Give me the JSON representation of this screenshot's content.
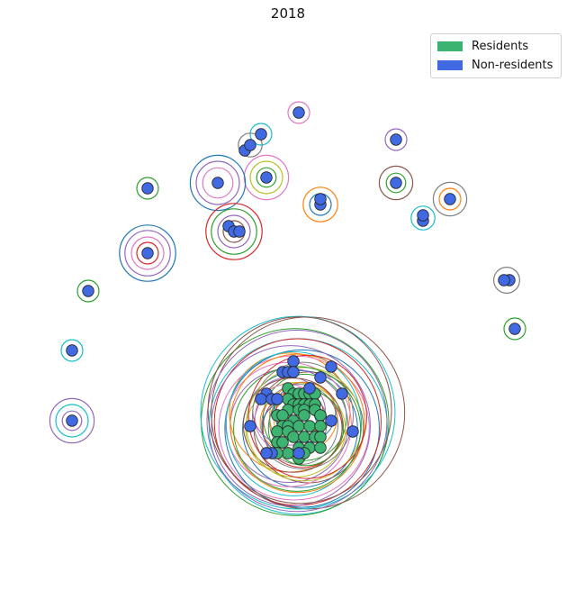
{
  "chart_data": {
    "type": "scatter",
    "title": "2018",
    "xlabel": "",
    "ylabel": "",
    "axes_visible": false,
    "grid": false,
    "legend_placement": "top-right",
    "xlim": [
      0,
      100
    ],
    "ylim": [
      0,
      100
    ],
    "series": [
      {
        "name": "Residents",
        "color": "#3cb371",
        "points": [
          [
            50,
            34
          ],
          [
            51,
            33
          ],
          [
            52,
            33
          ],
          [
            53,
            33
          ],
          [
            54,
            33
          ],
          [
            55,
            33
          ],
          [
            50,
            32
          ],
          [
            51,
            31
          ],
          [
            52,
            31
          ],
          [
            53,
            31
          ],
          [
            54,
            31
          ],
          [
            55,
            31
          ],
          [
            50,
            30
          ],
          [
            52,
            30
          ],
          [
            53,
            30
          ],
          [
            55,
            30
          ],
          [
            48,
            29
          ],
          [
            49,
            29
          ],
          [
            51,
            28
          ],
          [
            53,
            29
          ],
          [
            56,
            29
          ],
          [
            49,
            27
          ],
          [
            50,
            27
          ],
          [
            52,
            27
          ],
          [
            54,
            27
          ],
          [
            56,
            27
          ],
          [
            48,
            26
          ],
          [
            50,
            26
          ],
          [
            51,
            25
          ],
          [
            53,
            25
          ],
          [
            55,
            25
          ],
          [
            56,
            25
          ],
          [
            48,
            24
          ],
          [
            49,
            24
          ],
          [
            52,
            23
          ],
          [
            54,
            23
          ],
          [
            56,
            23
          ],
          [
            50,
            22
          ],
          [
            52,
            21
          ],
          [
            48,
            22
          ],
          [
            53,
            22
          ]
        ],
        "sizes": [
          1
        ]
      },
      {
        "name": "Non-residents",
        "color": "#4169e1",
        "points": [
          [
            52,
            85
          ],
          [
            45,
            81
          ],
          [
            42,
            78
          ],
          [
            43,
            79
          ],
          [
            46,
            73
          ],
          [
            37,
            72
          ],
          [
            24,
            71
          ],
          [
            56,
            68
          ],
          [
            56,
            69
          ],
          [
            70,
            80
          ],
          [
            70,
            72
          ],
          [
            80,
            69
          ],
          [
            75,
            65
          ],
          [
            75,
            66
          ],
          [
            39,
            64
          ],
          [
            40,
            63
          ],
          [
            41,
            63
          ],
          [
            24,
            59
          ],
          [
            13,
            52
          ],
          [
            91,
            54
          ],
          [
            90,
            54
          ],
          [
            92,
            45
          ],
          [
            10,
            41
          ],
          [
            10,
            28
          ],
          [
            51,
            39
          ],
          [
            58,
            38
          ],
          [
            49,
            37
          ],
          [
            50,
            37
          ],
          [
            51,
            37
          ],
          [
            56,
            36
          ],
          [
            60,
            33
          ],
          [
            46,
            33
          ],
          [
            45,
            32
          ],
          [
            47,
            32
          ],
          [
            48,
            32
          ],
          [
            54,
            34
          ],
          [
            43,
            27
          ],
          [
            58,
            28
          ],
          [
            62,
            26
          ],
          [
            47,
            22
          ],
          [
            46,
            22
          ],
          [
            52,
            22
          ]
        ],
        "sizes": [
          1
        ]
      }
    ],
    "ring_groups": [
      {
        "x": 52,
        "y": 85,
        "rings": [
          {
            "r": 2.0,
            "color": "#e377c2"
          }
        ]
      },
      {
        "x": 45,
        "y": 81,
        "rings": [
          {
            "r": 2.0,
            "color": "#17becf"
          }
        ]
      },
      {
        "x": 43,
        "y": 79,
        "rings": [
          {
            "r": 2.2,
            "color": "#7f7f7f"
          }
        ]
      },
      {
        "x": 46,
        "y": 73,
        "rings": [
          {
            "r": 1.8,
            "color": "#2ca02c"
          },
          {
            "r": 3.0,
            "color": "#bcbd22"
          },
          {
            "r": 4.1,
            "color": "#e377c2"
          }
        ]
      },
      {
        "x": 37,
        "y": 72,
        "rings": [
          {
            "r": 2.8,
            "color": "#e377c2"
          },
          {
            "r": 4.0,
            "color": "#9467bd"
          },
          {
            "r": 5.1,
            "color": "#1f77b4"
          }
        ]
      },
      {
        "x": 24,
        "y": 71,
        "rings": [
          {
            "r": 2.0,
            "color": "#2ca02c"
          }
        ]
      },
      {
        "x": 56,
        "y": 68,
        "rings": [
          {
            "r": 2.0,
            "color": "#1f77b4"
          },
          {
            "r": 3.2,
            "color": "#ff7f0e"
          }
        ]
      },
      {
        "x": 70,
        "y": 80,
        "rings": [
          {
            "r": 2.0,
            "color": "#9467bd"
          }
        ]
      },
      {
        "x": 70,
        "y": 72,
        "rings": [
          {
            "r": 1.8,
            "color": "#2ca02c"
          },
          {
            "r": 3.1,
            "color": "#8c564b"
          }
        ]
      },
      {
        "x": 80,
        "y": 69,
        "rings": [
          {
            "r": 2.0,
            "color": "#ff7f0e"
          },
          {
            "r": 3.1,
            "color": "#7f7f7f"
          }
        ]
      },
      {
        "x": 75,
        "y": 65.5,
        "rings": [
          {
            "r": 2.2,
            "color": "#17becf"
          }
        ]
      },
      {
        "x": 40,
        "y": 63,
        "rings": [
          {
            "r": 2.0,
            "color": "#8c564b"
          },
          {
            "r": 3.0,
            "color": "#9467bd"
          },
          {
            "r": 4.2,
            "color": "#2ca02c"
          },
          {
            "r": 5.2,
            "color": "#d62728"
          }
        ]
      },
      {
        "x": 24,
        "y": 59,
        "rings": [
          {
            "r": 2.0,
            "color": "#d62728"
          },
          {
            "r": 3.0,
            "color": "#e377c2"
          },
          {
            "r": 4.2,
            "color": "#9467bd"
          },
          {
            "r": 5.2,
            "color": "#1f77b4"
          }
        ]
      },
      {
        "x": 13,
        "y": 52,
        "rings": [
          {
            "r": 2.0,
            "color": "#2ca02c"
          }
        ]
      },
      {
        "x": 90.5,
        "y": 54,
        "rings": [
          {
            "r": 2.4,
            "color": "#7f7f7f"
          }
        ]
      },
      {
        "x": 92,
        "y": 45,
        "rings": [
          {
            "r": 2.0,
            "color": "#2ca02c"
          }
        ]
      },
      {
        "x": 10,
        "y": 41,
        "rings": [
          {
            "r": 2.0,
            "color": "#17becf"
          }
        ]
      },
      {
        "x": 10,
        "y": 28,
        "rings": [
          {
            "r": 1.8,
            "color": "#9467bd"
          },
          {
            "r": 3.0,
            "color": "#17becf"
          },
          {
            "r": 4.1,
            "color": "#9467bd"
          }
        ]
      }
    ],
    "cluster_rings": {
      "center": [
        52,
        28
      ],
      "count": 36,
      "r_min": 4,
      "r_max": 18,
      "colors": [
        "#1f77b4",
        "#ff7f0e",
        "#2ca02c",
        "#d62728",
        "#9467bd",
        "#8c564b",
        "#e377c2",
        "#7f7f7f",
        "#bcbd22",
        "#17becf"
      ]
    }
  },
  "legend": {
    "residents_label": "Residents",
    "nonresidents_label": "Non-residents",
    "residents_color": "#3cb371",
    "nonresidents_color": "#4169e1"
  }
}
